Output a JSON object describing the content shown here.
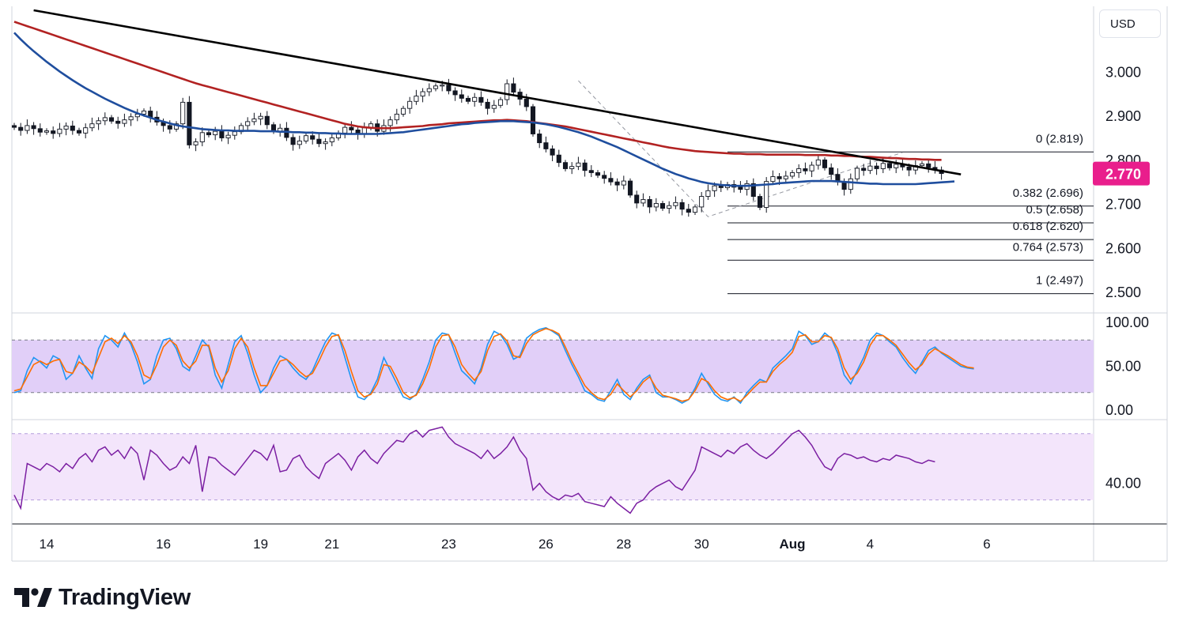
{
  "currency_label": "USD",
  "brand": {
    "name": "TradingView",
    "logo_icon": "tradingview-logo-icon"
  },
  "colors": {
    "candles": "#131722",
    "trendline": "#000000",
    "ma_red": "#b22222",
    "ma_blue": "#1f4e9e",
    "last_price_bg": "#e91e8c",
    "stoch_k": "#2196f3",
    "stoch_d": "#ff6d00",
    "stoch_band": "#e1cff8",
    "rsi_line": "#7b1fa2",
    "rsi_band": "#f3e5fb",
    "fib_line": "#131722",
    "grid_border": "#d1d4dc"
  },
  "chart_data": [
    {
      "type": "candlestick",
      "panel": "price",
      "y_ticks": [
        "3.000",
        "2.900",
        "2.800",
        "2.700",
        "2.600",
        "2.500"
      ],
      "y_tick_values": [
        3.0,
        2.9,
        2.8,
        2.7,
        2.6,
        2.5
      ],
      "ylim": [
        2.455,
        3.15
      ],
      "last_price": 2.77,
      "last_price_label": "2.770",
      "x_ticks": [
        "14",
        "16",
        "19",
        "21",
        "23",
        "26",
        "28",
        "30",
        "Aug",
        "4",
        "6"
      ],
      "x_tick_index": [
        5,
        23,
        38,
        49,
        67,
        82,
        94,
        106,
        120,
        132,
        150
      ],
      "close_series": [
        2.875,
        2.868,
        2.879,
        2.872,
        2.864,
        2.867,
        2.861,
        2.871,
        2.878,
        2.868,
        2.862,
        2.874,
        2.883,
        2.89,
        2.897,
        2.889,
        2.884,
        2.892,
        2.899,
        2.905,
        2.912,
        2.898,
        2.887,
        2.879,
        2.871,
        2.883,
        2.932,
        2.835,
        2.842,
        2.863,
        2.858,
        2.866,
        2.851,
        2.857,
        2.865,
        2.879,
        2.888,
        2.894,
        2.9,
        2.881,
        2.866,
        2.873,
        2.852,
        2.836,
        2.844,
        2.856,
        2.848,
        2.838,
        2.842,
        2.851,
        2.862,
        2.875,
        2.869,
        2.861,
        2.874,
        2.883,
        2.866,
        2.879,
        2.892,
        2.905,
        2.918,
        2.934,
        2.946,
        2.956,
        2.963,
        2.969,
        2.971,
        2.958,
        2.949,
        2.941,
        2.934,
        2.943,
        2.932,
        2.918,
        2.925,
        2.938,
        2.974,
        2.955,
        2.939,
        2.922,
        2.86,
        2.84,
        2.826,
        2.812,
        2.795,
        2.781,
        2.786,
        2.794,
        2.777,
        2.772,
        2.766,
        2.759,
        2.751,
        2.744,
        2.753,
        2.721,
        2.703,
        2.711,
        2.694,
        2.702,
        2.691,
        2.697,
        2.704,
        2.689,
        2.682,
        2.694,
        2.718,
        2.731,
        2.742,
        2.738,
        2.745,
        2.739,
        2.734,
        2.747,
        2.718,
        2.693,
        2.752,
        2.763,
        2.758,
        2.764,
        2.772,
        2.781,
        2.776,
        2.789,
        2.801,
        2.783,
        2.768,
        2.751,
        2.734,
        2.758,
        2.782,
        2.777,
        2.787,
        2.781,
        2.793,
        2.783,
        2.791,
        2.785,
        2.778,
        2.788,
        2.792,
        2.784,
        2.778,
        2.77
      ],
      "ma_red": [
        3.115,
        3.11,
        3.105,
        3.1,
        3.095,
        3.09,
        3.085,
        3.08,
        3.075,
        3.07,
        3.065,
        3.06,
        3.055,
        3.05,
        3.045,
        3.04,
        3.035,
        3.03,
        3.025,
        3.02,
        3.015,
        3.01,
        3.005,
        3.0,
        2.995,
        2.99,
        2.985,
        2.98,
        2.975,
        2.971,
        2.967,
        2.963,
        2.959,
        2.955,
        2.951,
        2.947,
        2.943,
        2.939,
        2.935,
        2.931,
        2.927,
        2.923,
        2.919,
        2.915,
        2.911,
        2.907,
        2.903,
        2.899,
        2.895,
        2.891,
        2.887,
        2.883,
        2.88,
        2.877,
        2.875,
        2.874,
        2.873,
        2.873,
        2.873,
        2.874,
        2.875,
        2.876,
        2.877,
        2.878,
        2.88,
        2.881,
        2.882,
        2.884,
        2.885,
        2.886,
        2.887,
        2.888,
        2.889,
        2.89,
        2.891,
        2.891,
        2.892,
        2.891,
        2.89,
        2.889,
        2.887,
        2.885,
        2.883,
        2.881,
        2.879,
        2.877,
        2.874,
        2.871,
        2.868,
        2.865,
        2.862,
        2.859,
        2.856,
        2.853,
        2.85,
        2.847,
        2.844,
        2.841,
        2.838,
        2.835,
        2.832,
        2.829,
        2.827,
        2.825,
        2.823,
        2.821,
        2.82,
        2.819,
        2.818,
        2.817,
        2.816,
        2.815,
        2.815,
        2.814,
        2.814,
        2.814,
        2.813,
        2.813,
        2.813,
        2.813,
        2.813,
        2.813,
        2.812,
        2.812,
        2.812,
        2.812,
        2.811,
        2.811,
        2.81,
        2.81,
        2.809,
        2.808,
        2.808,
        2.807,
        2.806,
        2.805,
        2.805,
        2.804,
        2.803,
        2.803,
        2.802,
        2.802,
        2.801,
        2.801
      ],
      "ma_blue": [
        3.09,
        3.075,
        3.061,
        3.048,
        3.036,
        3.024,
        3.013,
        3.002,
        2.992,
        2.982,
        2.973,
        2.964,
        2.956,
        2.948,
        2.94,
        2.933,
        2.926,
        2.919,
        2.913,
        2.907,
        2.902,
        2.897,
        2.892,
        2.888,
        2.884,
        2.88,
        2.877,
        2.875,
        2.873,
        2.871,
        2.87,
        2.869,
        2.868,
        2.868,
        2.867,
        2.867,
        2.867,
        2.867,
        2.866,
        2.866,
        2.866,
        2.865,
        2.865,
        2.864,
        2.864,
        2.863,
        2.863,
        2.862,
        2.862,
        2.861,
        2.861,
        2.86,
        2.86,
        2.86,
        2.86,
        2.86,
        2.86,
        2.861,
        2.862,
        2.863,
        2.864,
        2.866,
        2.868,
        2.87,
        2.872,
        2.874,
        2.876,
        2.878,
        2.88,
        2.882,
        2.883,
        2.885,
        2.886,
        2.887,
        2.888,
        2.889,
        2.889,
        2.889,
        2.888,
        2.887,
        2.886,
        2.884,
        2.882,
        2.879,
        2.876,
        2.872,
        2.868,
        2.864,
        2.859,
        2.854,
        2.848,
        2.842,
        2.836,
        2.83,
        2.823,
        2.816,
        2.809,
        2.802,
        2.795,
        2.788,
        2.781,
        2.775,
        2.769,
        2.764,
        2.759,
        2.755,
        2.751,
        2.748,
        2.746,
        2.744,
        2.743,
        2.742,
        2.742,
        2.742,
        2.743,
        2.744,
        2.745,
        2.746,
        2.748,
        2.749,
        2.75,
        2.751,
        2.752,
        2.753,
        2.753,
        2.753,
        2.753,
        2.752,
        2.751,
        2.75,
        2.749,
        2.748,
        2.747,
        2.747,
        2.746,
        2.746,
        2.746,
        2.746,
        2.746,
        2.746,
        2.747,
        2.748,
        2.749,
        2.75,
        2.751,
        2.752
      ],
      "trendline": [
        {
          "i": 3,
          "v": 3.141
        },
        {
          "i": 146,
          "v": 2.768
        }
      ],
      "fibonacci": {
        "levels": [
          {
            "label": "0 (2.819)",
            "value": 2.819
          },
          {
            "label": "0.382 (2.696)",
            "value": 2.696
          },
          {
            "label": "0.5 (2.658)",
            "value": 2.658
          },
          {
            "label": "0.618 (2.620)",
            "value": 2.62
          },
          {
            "label": "0.764 (2.573)",
            "value": 2.573
          },
          {
            "label": "1 (2.497)",
            "value": 2.497
          }
        ],
        "start_index": 110
      },
      "dashed_swing_path": [
        {
          "i": 87,
          "v": 2.981
        },
        {
          "i": 107,
          "v": 2.672
        },
        {
          "i": 137,
          "v": 2.818
        }
      ]
    },
    {
      "type": "line",
      "panel": "stochastic",
      "y_ticks": [
        "100.00",
        "50.00",
        "0.00"
      ],
      "y_tick_values": [
        100,
        50,
        0
      ],
      "ylim": [
        -10,
        110
      ],
      "band": [
        20,
        80
      ],
      "series": [
        {
          "key": "k",
          "values": [
            20,
            22,
            45,
            60,
            55,
            48,
            62,
            58,
            35,
            42,
            62,
            48,
            36,
            70,
            85,
            80,
            72,
            88,
            75,
            55,
            30,
            35,
            62,
            80,
            82,
            70,
            50,
            45,
            62,
            80,
            72,
            40,
            25,
            52,
            78,
            85,
            65,
            40,
            20,
            28,
            48,
            62,
            58,
            48,
            40,
            35,
            45,
            62,
            78,
            88,
            85,
            60,
            35,
            15,
            12,
            20,
            35,
            60,
            45,
            30,
            15,
            12,
            18,
            35,
            55,
            80,
            88,
            86,
            65,
            45,
            38,
            30,
            48,
            75,
            90,
            86,
            75,
            58,
            62,
            82,
            88,
            92,
            94,
            90,
            85,
            68,
            52,
            38,
            22,
            18,
            12,
            10,
            22,
            35,
            18,
            12,
            25,
            35,
            40,
            20,
            15,
            15,
            12,
            8,
            12,
            25,
            42,
            30,
            18,
            12,
            10,
            15,
            8,
            20,
            28,
            35,
            32,
            48,
            55,
            62,
            70,
            90,
            85,
            75,
            78,
            88,
            82,
            65,
            40,
            30,
            45,
            60,
            80,
            88,
            85,
            78,
            72,
            60,
            50,
            42,
            55,
            68,
            72,
            65,
            60,
            55,
            50,
            48,
            47
          ]
        },
        {
          "key": "d",
          "values": [
            22,
            24,
            38,
            52,
            56,
            52,
            56,
            58,
            44,
            42,
            55,
            50,
            42,
            60,
            78,
            82,
            76,
            85,
            78,
            62,
            40,
            36,
            52,
            72,
            80,
            74,
            56,
            48,
            56,
            74,
            74,
            48,
            32,
            45,
            70,
            82,
            72,
            48,
            28,
            28,
            42,
            56,
            58,
            52,
            44,
            38,
            42,
            56,
            72,
            84,
            86,
            68,
            44,
            22,
            15,
            18,
            30,
            52,
            50,
            36,
            20,
            14,
            17,
            30,
            48,
            72,
            85,
            86,
            72,
            52,
            42,
            34,
            44,
            68,
            84,
            87,
            79,
            62,
            60,
            76,
            86,
            90,
            93,
            91,
            87,
            72,
            56,
            42,
            28,
            20,
            14,
            12,
            18,
            30,
            22,
            15,
            22,
            32,
            38,
            25,
            17,
            15,
            13,
            10,
            12,
            22,
            36,
            32,
            22,
            15,
            12,
            14,
            10,
            17,
            25,
            32,
            32,
            44,
            52,
            58,
            66,
            84,
            86,
            78,
            78,
            85,
            83,
            70,
            48,
            35,
            42,
            55,
            74,
            85,
            85,
            80,
            74,
            64,
            54,
            46,
            52,
            64,
            70,
            66,
            62,
            57,
            52,
            49,
            48
          ]
        }
      ]
    },
    {
      "type": "line",
      "panel": "rsi",
      "y_ticks": [
        "40.00"
      ],
      "y_tick_values": [
        40
      ],
      "ylim": [
        16,
        78
      ],
      "band": [
        30,
        70
      ],
      "series": [
        {
          "key": "rsi",
          "values": [
            33,
            25,
            52,
            50,
            48,
            52,
            50,
            47,
            52,
            49,
            55,
            58,
            53,
            60,
            62,
            57,
            60,
            55,
            62,
            58,
            42,
            60,
            57,
            52,
            48,
            50,
            56,
            52,
            63,
            35,
            56,
            55,
            51,
            48,
            45,
            50,
            55,
            60,
            58,
            54,
            63,
            47,
            48,
            55,
            57,
            50,
            46,
            43,
            52,
            55,
            58,
            54,
            48,
            56,
            60,
            55,
            52,
            58,
            62,
            66,
            65,
            70,
            72,
            68,
            72,
            73,
            74,
            68,
            64,
            62,
            60,
            58,
            55,
            60,
            55,
            58,
            62,
            68,
            60,
            55,
            36,
            40,
            35,
            32,
            30,
            33,
            32,
            34,
            29,
            28,
            27,
            26,
            32,
            28,
            25,
            22,
            28,
            30,
            35,
            38,
            40,
            42,
            38,
            36,
            42,
            48,
            62,
            60,
            58,
            56,
            60,
            58,
            62,
            64,
            60,
            57,
            55,
            58,
            62,
            66,
            70,
            72,
            68,
            63,
            56,
            50,
            48,
            55,
            58,
            57,
            55,
            56,
            54,
            53,
            55,
            54,
            57,
            56,
            55,
            53,
            52,
            54,
            53
          ]
        }
      ]
    }
  ]
}
